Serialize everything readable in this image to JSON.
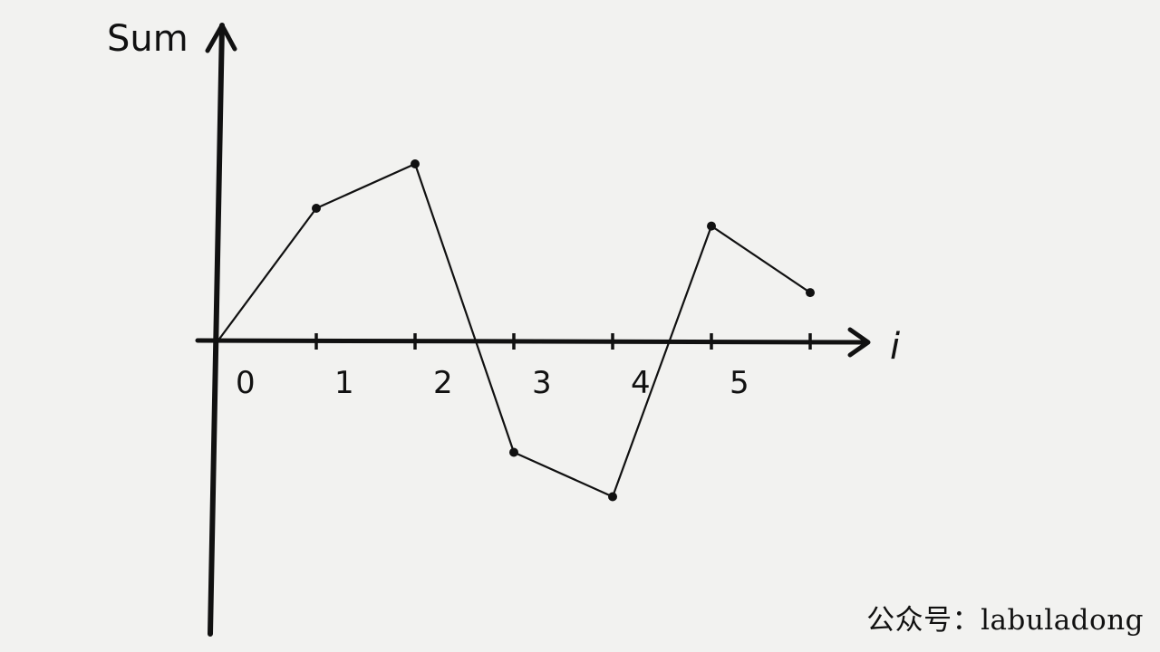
{
  "chart_data": {
    "type": "line",
    "ylabel": "Sum",
    "xlabel": "i",
    "x": [
      0,
      1,
      2,
      3,
      4,
      5,
      6
    ],
    "x_tick_labels": [
      "0",
      "1",
      "2",
      "3",
      "4",
      "5"
    ],
    "values": [
      0,
      3,
      4,
      -2.5,
      -3.5,
      2.6,
      1.1
    ],
    "markers": true,
    "grid": false,
    "legend": "none",
    "xlim": [
      0,
      6
    ],
    "ylim": [
      -7,
      7
    ]
  },
  "watermark": {
    "text": "公众号：labuladong"
  }
}
